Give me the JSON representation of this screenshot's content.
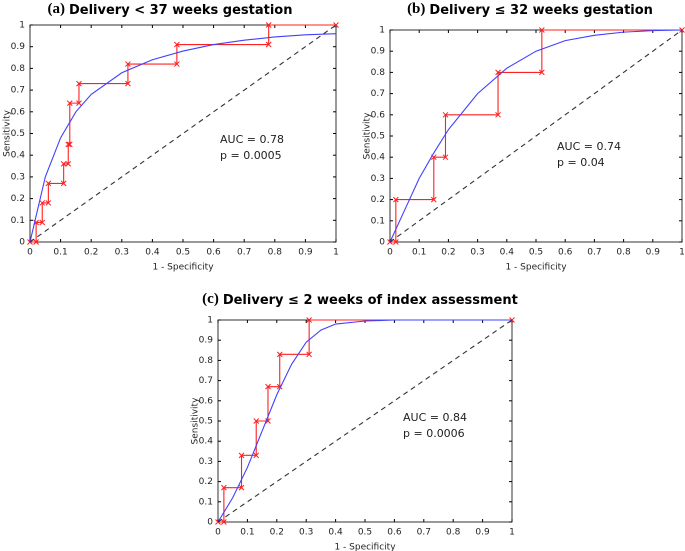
{
  "chart_data": [
    {
      "type": "line",
      "label": "(a)",
      "title": "Delivery < 37 weeks gestation",
      "xlabel": "1 - Specificity",
      "ylabel": "Sensitivity",
      "annotations": [
        "AUC = 0.78",
        "p = 0.0005"
      ],
      "xlim": [
        0,
        1
      ],
      "ylim": [
        0,
        1
      ],
      "xticks": [
        0,
        0.1,
        0.2,
        0.3,
        0.4,
        0.5,
        0.6,
        0.7,
        0.8,
        0.9,
        1
      ],
      "yticks": [
        0,
        0.1,
        0.2,
        0.3,
        0.4,
        0.5,
        0.6,
        0.7,
        0.8,
        0.9,
        1
      ],
      "series": [
        {
          "color": "#ff2020",
          "markers": true,
          "x": [
            0,
            0.02,
            0.02,
            0.04,
            0.04,
            0.06,
            0.06,
            0.11,
            0.11,
            0.125,
            0.125,
            0.13,
            0.13,
            0.16,
            0.16,
            0.32,
            0.32,
            0.48,
            0.48,
            0.78,
            0.78,
            1
          ],
          "values": [
            0,
            0,
            0.09,
            0.09,
            0.18,
            0.18,
            0.27,
            0.27,
            0.36,
            0.36,
            0.45,
            0.45,
            0.64,
            0.64,
            0.73,
            0.73,
            0.82,
            0.82,
            0.91,
            0.91,
            1,
            1
          ]
        },
        {
          "color": "#4040ff",
          "x": [
            0,
            0.05,
            0.1,
            0.15,
            0.2,
            0.3,
            0.4,
            0.5,
            0.6,
            0.7,
            0.8,
            0.9,
            1
          ],
          "values": [
            0,
            0.3,
            0.48,
            0.6,
            0.68,
            0.78,
            0.84,
            0.88,
            0.91,
            0.93,
            0.945,
            0.955,
            0.96
          ]
        },
        {
          "color": "#333333",
          "dash": true,
          "x": [
            0,
            1
          ],
          "values": [
            0,
            1
          ]
        }
      ]
    },
    {
      "type": "line",
      "label": "(b)",
      "title": "Delivery ≤ 32 weeks gestation",
      "xlabel": "1 - Specificity",
      "ylabel": "Sensitivity",
      "annotations": [
        "AUC = 0.74",
        "p = 0.04"
      ],
      "xlim": [
        0,
        1
      ],
      "ylim": [
        0,
        1
      ],
      "xticks": [
        0,
        0.1,
        0.2,
        0.3,
        0.4,
        0.5,
        0.6,
        0.7,
        0.8,
        0.9,
        1
      ],
      "yticks": [
        0,
        0.1,
        0.2,
        0.3,
        0.4,
        0.5,
        0.6,
        0.7,
        0.8,
        0.9,
        1
      ],
      "series": [
        {
          "color": "#ff2020",
          "markers": true,
          "x": [
            0,
            0.02,
            0.02,
            0.15,
            0.15,
            0.19,
            0.19,
            0.37,
            0.37,
            0.52,
            0.52,
            1
          ],
          "values": [
            0,
            0,
            0.2,
            0.2,
            0.4,
            0.4,
            0.6,
            0.6,
            0.8,
            0.8,
            1,
            1
          ]
        },
        {
          "color": "#4040ff",
          "x": [
            0,
            0.05,
            0.1,
            0.15,
            0.2,
            0.3,
            0.4,
            0.5,
            0.6,
            0.7,
            0.8,
            0.9,
            1
          ],
          "values": [
            0,
            0.15,
            0.3,
            0.42,
            0.53,
            0.7,
            0.82,
            0.9,
            0.95,
            0.975,
            0.99,
            0.997,
            1
          ]
        },
        {
          "color": "#333333",
          "dash": true,
          "x": [
            0,
            1
          ],
          "values": [
            0,
            1
          ]
        }
      ]
    },
    {
      "type": "line",
      "label": "(c)",
      "title": "Delivery ≤ 2 weeks of index assessment",
      "xlabel": "1 - Specificity",
      "ylabel": "Sensitivity",
      "annotations": [
        "AUC = 0.84",
        "p = 0.0006"
      ],
      "xlim": [
        0,
        1
      ],
      "ylim": [
        0,
        1
      ],
      "xticks": [
        0,
        0.1,
        0.2,
        0.3,
        0.4,
        0.5,
        0.6,
        0.7,
        0.8,
        0.9,
        1
      ],
      "yticks": [
        0,
        0.1,
        0.2,
        0.3,
        0.4,
        0.5,
        0.6,
        0.7,
        0.8,
        0.9,
        1
      ],
      "series": [
        {
          "color": "#ff2020",
          "markers": true,
          "x": [
            0,
            0.02,
            0.02,
            0.08,
            0.08,
            0.13,
            0.13,
            0.17,
            0.17,
            0.21,
            0.21,
            0.31,
            0.31,
            1
          ],
          "values": [
            0,
            0,
            0.17,
            0.17,
            0.33,
            0.33,
            0.5,
            0.5,
            0.67,
            0.67,
            0.83,
            0.83,
            1,
            1
          ]
        },
        {
          "color": "#4040ff",
          "x": [
            0,
            0.05,
            0.1,
            0.15,
            0.2,
            0.25,
            0.3,
            0.35,
            0.4,
            0.5,
            0.6,
            0.8,
            1
          ],
          "values": [
            0,
            0.12,
            0.27,
            0.45,
            0.63,
            0.78,
            0.89,
            0.95,
            0.98,
            0.995,
            1,
            1,
            1
          ]
        },
        {
          "color": "#333333",
          "dash": true,
          "x": [
            0,
            1
          ],
          "values": [
            0,
            1
          ]
        }
      ]
    }
  ]
}
